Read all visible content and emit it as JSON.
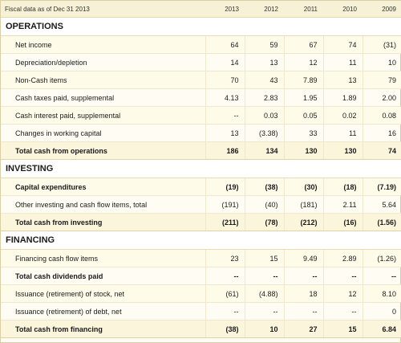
{
  "header": {
    "label": "Fiscal data as of Dec 31 2013",
    "years": [
      "2013",
      "2012",
      "2011",
      "2010",
      "2009"
    ]
  },
  "sections": [
    {
      "title": "OPERATIONS",
      "rows": [
        {
          "label": "Net income",
          "values": [
            "64",
            "59",
            "67",
            "74",
            "(31)"
          ],
          "style": "normal"
        },
        {
          "label": "Depreciation/depletion",
          "values": [
            "14",
            "13",
            "12",
            "11",
            "10"
          ],
          "style": "normal"
        },
        {
          "label": "Non-Cash items",
          "values": [
            "70",
            "43",
            "7.89",
            "13",
            "79"
          ],
          "style": "normal"
        },
        {
          "label": "Cash taxes paid, supplemental",
          "values": [
            "4.13",
            "2.83",
            "1.95",
            "1.89",
            "2.00"
          ],
          "style": "normal"
        },
        {
          "label": "Cash interest paid, supplemental",
          "values": [
            "--",
            "0.03",
            "0.05",
            "0.02",
            "0.08"
          ],
          "style": "normal"
        },
        {
          "label": "Changes in working capital",
          "values": [
            "13",
            "(3.38)",
            "33",
            "11",
            "16"
          ],
          "style": "normal"
        },
        {
          "label": "Total cash from operations",
          "values": [
            "186",
            "134",
            "130",
            "130",
            "74"
          ],
          "style": "total"
        }
      ]
    },
    {
      "title": "INVESTING",
      "rows": [
        {
          "label": "Capital expenditures",
          "values": [
            "(19)",
            "(38)",
            "(30)",
            "(18)",
            "(7.19)"
          ],
          "style": "bold"
        },
        {
          "label": "Other investing and cash flow items, total",
          "values": [
            "(191)",
            "(40)",
            "(181)",
            "2.11",
            "5.64"
          ],
          "style": "normal"
        },
        {
          "label": "Total cash from investing",
          "values": [
            "(211)",
            "(78)",
            "(212)",
            "(16)",
            "(1.56)"
          ],
          "style": "total"
        }
      ]
    },
    {
      "title": "FINANCING",
      "rows": [
        {
          "label": "Financing cash flow items",
          "values": [
            "23",
            "15",
            "9.49",
            "2.89",
            "(1.26)"
          ],
          "style": "normal"
        },
        {
          "label": "Total cash dividends paid",
          "values": [
            "--",
            "--",
            "--",
            "--",
            "--"
          ],
          "style": "bold"
        },
        {
          "label": "Issuance (retirement) of stock, net",
          "values": [
            "(61)",
            "(4.88)",
            "18",
            "12",
            "8.10"
          ],
          "style": "normal"
        },
        {
          "label": "Issuance (retirement) of debt, net",
          "values": [
            "--",
            "--",
            "--",
            "--",
            "0"
          ],
          "style": "normal"
        },
        {
          "label": "Total cash from financing",
          "values": [
            "(38)",
            "10",
            "27",
            "15",
            "6.84"
          ],
          "style": "total"
        }
      ]
    }
  ]
}
